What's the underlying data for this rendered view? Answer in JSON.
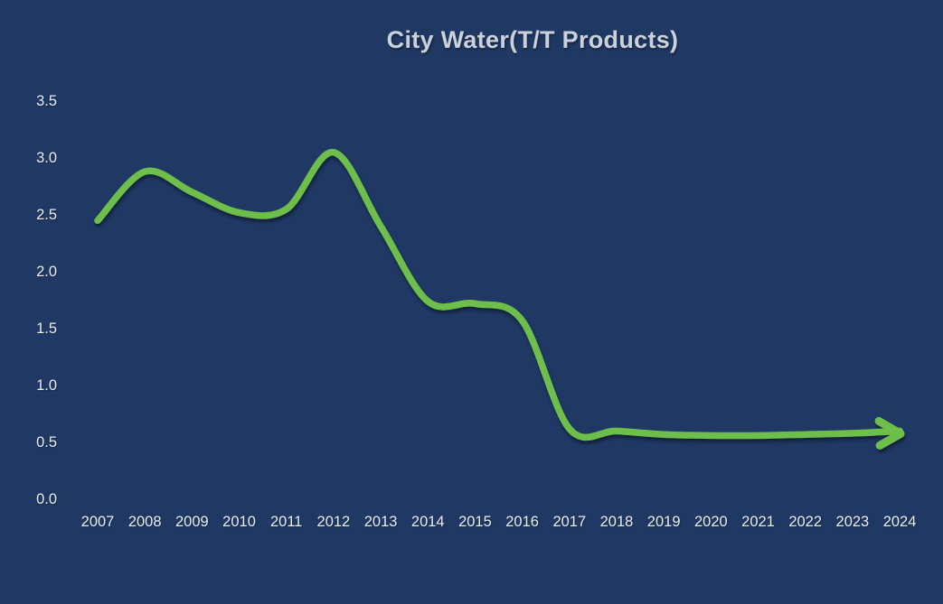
{
  "chart_data": {
    "type": "line",
    "title": "City Water(T/T Products)",
    "categories": [
      "2007",
      "2008",
      "2009",
      "2010",
      "2011",
      "2012",
      "2013",
      "2014",
      "2015",
      "2016",
      "2017",
      "2018",
      "2019",
      "2020",
      "2021",
      "2022",
      "2023",
      "2024"
    ],
    "series": [
      {
        "name": "City Water(T/T Products)",
        "values": [
          2.45,
          2.88,
          2.7,
          2.52,
          2.55,
          3.05,
          2.4,
          1.74,
          1.72,
          1.57,
          0.62,
          0.6,
          0.57,
          0.56,
          0.56,
          0.57,
          0.58,
          0.6
        ]
      }
    ],
    "xlabel": "",
    "ylabel": "",
    "ylim": [
      0,
      3.5
    ],
    "y_tick_labels": [
      "3.5",
      "3.0",
      "2.5",
      "2.0",
      "1.5",
      "1.0",
      "0.5",
      "0.0"
    ],
    "grid": false,
    "legend_position": "none",
    "line_smooth": true,
    "end_arrow": true,
    "colors": {
      "background": "#1F3864",
      "line": "#6EBE4B",
      "title_text": "#CBD1DA",
      "tick_text": "#EAEDF1",
      "axis_line": "#9DA7B4"
    }
  }
}
